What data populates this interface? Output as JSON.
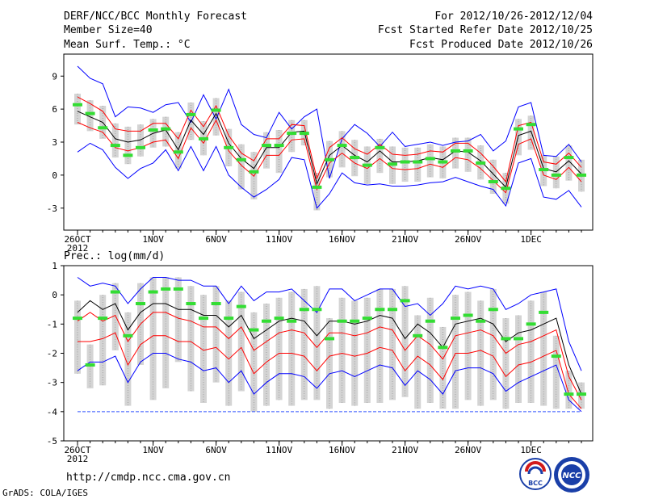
{
  "header": {
    "left1": "DERF/NCC/BCC Monthly Forecast",
    "left2": "Member Size=40",
    "left3": "Mean Surf. Temp.: °C",
    "right1": "For 2012/10/26-2012/12/04",
    "right2": "Fcst Started Refer Date 2012/10/25",
    "right3": "Fcst Produced Date 2012/10/26"
  },
  "precip_label": "Prec.: log(mm/d)",
  "footer": {
    "url": "http://cmdp.ncc.cma.gov.cn",
    "grads": "GrADS: COLA/IGES",
    "logo_bcc": "BCC",
    "logo_ncc": "NCC"
  },
  "colors": {
    "bar": "#d4d4d4",
    "envelope": "#0000ff",
    "spread": "#ff0000",
    "mean": "#000000",
    "marker": "#33dd33",
    "floor": "#3355ff"
  },
  "chart_data": [
    {
      "type": "box-ensemble",
      "title": "Mean Surf. Temp.: °C",
      "ylim": [
        -5,
        11
      ],
      "yticks": [
        9,
        6,
        3,
        0,
        -3
      ],
      "xticks": [
        {
          "day": 0,
          "label": "26OCT"
        },
        {
          "day": 6,
          "label": "1NOV"
        },
        {
          "day": 11,
          "label": "6NOV"
        },
        {
          "day": 16,
          "label": "11NOV"
        },
        {
          "day": 21,
          "label": "16NOV"
        },
        {
          "day": 26,
          "label": "21NOV"
        },
        {
          "day": 31,
          "label": "26NOV"
        },
        {
          "day": 36,
          "label": "1DEC"
        }
      ],
      "year_label": "2012",
      "days": 40,
      "max": [
        9.9,
        8.8,
        8.3,
        5.3,
        6.2,
        6.1,
        5.7,
        6.4,
        6.6,
        4.8,
        7.3,
        5.1,
        7.8,
        4.6,
        3.7,
        3.4,
        5.7,
        4.2,
        5.3,
        6.0,
        -0.3,
        3.3,
        4.6,
        3.8,
        2.6,
        3.9,
        2.6,
        2.8,
        3.0,
        2.7,
        3.0,
        3.1,
        3.7,
        2.2,
        3.1,
        6.2,
        6.6,
        1.8,
        1.7,
        2.8,
        1.2
      ],
      "mean": [
        5.8,
        5.3,
        4.8,
        3.3,
        3.0,
        3.2,
        3.8,
        4.1,
        2.3,
        5.0,
        3.7,
        5.6,
        2.9,
        1.5,
        0.6,
        2.5,
        2.5,
        3.9,
        4.0,
        -0.8,
        1.8,
        2.7,
        1.8,
        1.2,
        2.2,
        1.2,
        1.2,
        1.3,
        1.6,
        1.4,
        2.2,
        2.1,
        1.3,
        0.1,
        -1.1,
        3.6,
        4.0,
        0.6,
        0.3,
        1.3,
        0.1
      ],
      "spread_hi": [
        7.1,
        6.5,
        5.8,
        4.2,
        4.0,
        4.0,
        4.7,
        4.7,
        3.3,
        5.9,
        4.4,
        6.3,
        3.6,
        2.0,
        1.3,
        3.3,
        3.3,
        4.6,
        4.5,
        -0.3,
        2.5,
        3.4,
        2.4,
        1.9,
        2.8,
        1.9,
        1.8,
        1.9,
        2.2,
        2.1,
        2.9,
        2.9,
        2.0,
        0.8,
        -0.6,
        4.5,
        4.8,
        1.2,
        1.0,
        2.0,
        0.7
      ],
      "spread_lo": [
        4.8,
        4.3,
        3.9,
        2.5,
        2.2,
        2.5,
        3.0,
        3.2,
        1.5,
        4.3,
        2.9,
        5.0,
        2.2,
        0.9,
        -0.1,
        1.8,
        1.8,
        3.2,
        3.3,
        -1.3,
        1.1,
        2.0,
        1.1,
        0.6,
        1.5,
        0.6,
        0.5,
        0.6,
        1.0,
        0.7,
        1.6,
        1.4,
        0.6,
        -0.5,
        -1.6,
        2.8,
        3.3,
        0.0,
        -0.4,
        0.7,
        -0.6
      ],
      "min": [
        2.1,
        2.9,
        2.3,
        0.7,
        -0.3,
        0.6,
        1.1,
        2.3,
        0.4,
        2.6,
        0.4,
        2.6,
        0.0,
        -1.1,
        -2.0,
        -1.3,
        -0.4,
        1.6,
        1.4,
        -3.0,
        -1.7,
        0.2,
        -0.7,
        -0.9,
        -0.8,
        -1.0,
        -1.0,
        -0.9,
        -0.7,
        -0.6,
        -0.2,
        -0.6,
        -1.0,
        -1.3,
        -2.8,
        1.1,
        1.5,
        -2.0,
        -2.2,
        -1.4,
        -2.9
      ],
      "marker": [
        6.4,
        5.6,
        4.3,
        2.7,
        1.8,
        2.5,
        4.1,
        4.2,
        2.1,
        5.5,
        3.3,
        5.9,
        2.5,
        1.4,
        0.3,
        2.7,
        2.7,
        3.8,
        3.8,
        -1.1,
        1.4,
        2.7,
        1.6,
        0.9,
        2.5,
        1.0,
        1.2,
        1.2,
        1.5,
        1.2,
        2.2,
        2.2,
        1.1,
        -0.6,
        -1.2,
        4.2,
        4.6,
        0.5,
        0.0,
        1.6,
        0.0
      ],
      "box_hi": [
        7.4,
        6.8,
        6.3,
        4.7,
        4.4,
        4.6,
        5.1,
        5.3,
        3.9,
        6.6,
        4.9,
        7.0,
        4.2,
        2.8,
        2.1,
        3.9,
        4.1,
        5.0,
        5.0,
        0.2,
        3.1,
        4.0,
        3.2,
        2.6,
        3.3,
        2.6,
        2.5,
        2.5,
        2.8,
        2.6,
        3.4,
        3.4,
        2.7,
        1.4,
        0.2,
        5.1,
        5.4,
        1.8,
        1.7,
        2.7,
        1.4
      ],
      "box_lo": [
        4.6,
        4.0,
        3.3,
        1.6,
        1.0,
        1.7,
        2.5,
        2.6,
        0.6,
        3.2,
        1.8,
        3.6,
        0.8,
        -1.3,
        -2.2,
        0.6,
        0.2,
        2.1,
        2.7,
        -3.2,
        -0.2,
        0.7,
        -0.1,
        -0.8,
        0.2,
        -0.8,
        -0.6,
        -0.6,
        -0.2,
        -0.3,
        0.6,
        0.3,
        -0.4,
        -1.7,
        -2.6,
        1.8,
        2.3,
        -1.0,
        -1.2,
        -0.5,
        -1.5
      ]
    },
    {
      "type": "box-ensemble",
      "title": "Prec.: log(mm/d)",
      "ylim": [
        -5,
        1
      ],
      "yticks": [
        1,
        0,
        -1,
        -2,
        -3,
        -4,
        -5
      ],
      "xticks": [
        {
          "day": 0,
          "label": "26OCT"
        },
        {
          "day": 6,
          "label": "1NOV"
        },
        {
          "day": 11,
          "label": "6NOV"
        },
        {
          "day": 16,
          "label": "11NOV"
        },
        {
          "day": 21,
          "label": "16NOV"
        },
        {
          "day": 26,
          "label": "21NOV"
        },
        {
          "day": 31,
          "label": "26NOV"
        },
        {
          "day": 36,
          "label": "1DEC"
        }
      ],
      "year_label": "2012",
      "days": 40,
      "floor": -4.0,
      "max": [
        0.6,
        0.3,
        0.4,
        0.3,
        -0.3,
        0.2,
        0.6,
        0.6,
        0.5,
        0.5,
        0.3,
        0.3,
        -0.3,
        0.3,
        -0.2,
        0.1,
        0.1,
        0.2,
        -0.2,
        -0.6,
        0.2,
        0.2,
        -0.2,
        0.0,
        0.2,
        0.2,
        -0.4,
        -0.3,
        -0.7,
        -0.3,
        0.3,
        0.2,
        0.3,
        0.2,
        -0.5,
        -0.3,
        0.0,
        0.1,
        0.2,
        -1.6,
        -2.6
      ],
      "mean": [
        -0.6,
        -0.2,
        -0.5,
        -0.3,
        -1.2,
        -0.6,
        -0.3,
        -0.3,
        -0.5,
        -0.5,
        -0.7,
        -0.7,
        -1.1,
        -0.7,
        -1.5,
        -1.2,
        -0.9,
        -0.8,
        -0.9,
        -1.4,
        -0.9,
        -0.9,
        -1.0,
        -0.9,
        -0.7,
        -0.8,
        -1.5,
        -1.0,
        -1.3,
        -1.8,
        -1.0,
        -0.9,
        -0.8,
        -1.0,
        -1.6,
        -1.3,
        -1.2,
        -1.0,
        -0.8,
        -2.4,
        -3.4
      ],
      "spread_hi": [
        -0.9,
        -0.6,
        -0.9,
        -0.7,
        -1.6,
        -1.0,
        -0.6,
        -0.6,
        -0.8,
        -0.9,
        -1.1,
        -1.1,
        -1.5,
        -1.1,
        -1.9,
        -1.6,
        -1.3,
        -1.2,
        -1.3,
        -1.8,
        -1.3,
        -1.3,
        -1.4,
        -1.3,
        -1.1,
        -1.2,
        -1.9,
        -1.4,
        -1.7,
        -2.2,
        -1.4,
        -1.3,
        -1.2,
        -1.4,
        -2.0,
        -1.7,
        -1.6,
        -1.4,
        -1.2,
        -2.8,
        -3.6
      ],
      "spread_lo": [
        -1.6,
        -1.6,
        -1.5,
        -1.3,
        -2.4,
        -1.7,
        -1.4,
        -1.4,
        -1.6,
        -1.6,
        -1.9,
        -1.8,
        -2.2,
        -1.8,
        -2.7,
        -2.3,
        -2.0,
        -2.0,
        -2.1,
        -2.6,
        -2.1,
        -2.0,
        -2.1,
        -2.0,
        -1.8,
        -1.9,
        -2.6,
        -2.1,
        -2.4,
        -2.9,
        -2.0,
        -2.0,
        -1.9,
        -2.1,
        -2.8,
        -2.4,
        -2.3,
        -2.1,
        -1.9,
        -3.4,
        -3.9
      ],
      "min": [
        -2.6,
        -2.3,
        -2.3,
        -2.1,
        -3.0,
        -2.3,
        -2.0,
        -2.0,
        -2.2,
        -2.3,
        -2.6,
        -2.5,
        -3.0,
        -2.6,
        -3.4,
        -3.0,
        -2.7,
        -2.7,
        -2.8,
        -3.2,
        -2.7,
        -2.6,
        -2.8,
        -2.6,
        -2.4,
        -2.5,
        -3.1,
        -2.6,
        -2.9,
        -3.4,
        -2.6,
        -2.5,
        -2.5,
        -2.7,
        -3.3,
        -3.0,
        -2.8,
        -2.6,
        -2.4,
        -3.6,
        -4.0
      ],
      "marker": [
        -0.8,
        -2.4,
        -0.8,
        0.1,
        -1.4,
        -0.3,
        0.1,
        0.2,
        0.2,
        -0.3,
        -0.8,
        -0.3,
        -0.8,
        -0.4,
        -1.2,
        -0.9,
        -0.8,
        -0.9,
        -0.5,
        -0.5,
        -1.5,
        -0.9,
        -0.9,
        -0.8,
        -0.5,
        -0.5,
        -0.2,
        -1.4,
        -0.9,
        -1.8,
        -0.8,
        -0.7,
        -0.9,
        -0.5,
        -1.5,
        -1.5,
        -1.0,
        -0.6,
        -2.1,
        -3.4,
        -3.4
      ],
      "box_hi": [
        -0.2,
        -1.7,
        0.0,
        0.4,
        -0.6,
        0.4,
        0.6,
        0.6,
        0.6,
        0.3,
        0.0,
        0.3,
        -0.2,
        0.1,
        -0.6,
        -0.3,
        -0.1,
        0.1,
        0.2,
        0.3,
        -0.8,
        -0.1,
        -0.2,
        -0.1,
        0.2,
        0.2,
        0.3,
        -0.7,
        -0.1,
        -1.1,
        0.0,
        0.1,
        -0.2,
        0.2,
        -0.8,
        -0.7,
        -0.2,
        0.1,
        -1.4,
        -2.6,
        -3.0
      ],
      "box_lo": [
        -2.7,
        -3.2,
        -3.1,
        -1.9,
        -3.8,
        -2.4,
        -3.6,
        -3.2,
        -2.3,
        -3.3,
        -3.7,
        -3.0,
        -3.8,
        -3.3,
        -4.0,
        -3.8,
        -3.6,
        -3.8,
        -3.6,
        -3.6,
        -3.9,
        -3.7,
        -3.8,
        -3.7,
        -3.7,
        -3.6,
        -3.5,
        -3.9,
        -3.7,
        -3.9,
        -3.9,
        -3.6,
        -3.8,
        -3.6,
        -3.9,
        -3.7,
        -3.7,
        -3.8,
        -3.9,
        -3.9,
        -3.9
      ]
    }
  ]
}
